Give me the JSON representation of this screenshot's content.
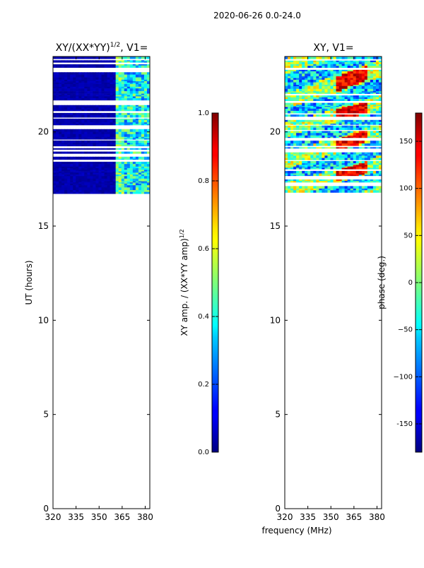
{
  "figure": {
    "suptitle": "2020-06-26 0.0-24.0",
    "shared_xlabel": "frequency (MHz)"
  },
  "chart_data": [
    {
      "type": "heatmap",
      "title_main": "XY/(XX*YY)",
      "title_exp": "1/2",
      "title_tail": ", V1=",
      "ylabel": "UT (hours)",
      "x_ticks": [
        "320",
        "335",
        "350",
        "365",
        "380"
      ],
      "x_tick_values": [
        320,
        335,
        350,
        365,
        380
      ],
      "xlim": [
        320,
        383
      ],
      "y_ticks": [
        "0",
        "5",
        "10",
        "15",
        "20"
      ],
      "y_tick_values": [
        0,
        5,
        10,
        15,
        20
      ],
      "ylim": [
        0,
        24
      ],
      "data_ut_range": [
        16.8,
        24
      ],
      "colorbar": {
        "label_main": "XY amp. / (XX*YY amp)",
        "label_exp": "1/2",
        "ticks": [
          "0.0",
          "0.2",
          "0.4",
          "0.6",
          "0.8",
          "1.0"
        ],
        "tick_values": [
          0.0,
          0.2,
          0.4,
          0.6,
          0.8,
          1.0
        ],
        "range": [
          0.0,
          1.0
        ],
        "colormap": "jet"
      }
    },
    {
      "type": "heatmap",
      "title_main": "XY, V1=",
      "x_ticks": [
        "320",
        "335",
        "350",
        "365",
        "380"
      ],
      "x_tick_values": [
        320,
        335,
        350,
        365,
        380
      ],
      "xlim": [
        320,
        383
      ],
      "y_ticks": [
        "0",
        "5",
        "10",
        "15",
        "20"
      ],
      "y_tick_values": [
        0,
        5,
        10,
        15,
        20
      ],
      "ylim": [
        0,
        24
      ],
      "data_ut_range": [
        16.8,
        24
      ],
      "colorbar": {
        "label_main": "phase (deg.)",
        "ticks": [
          "-150",
          "−100",
          "−50",
          "0",
          "50",
          "100",
          "150"
        ],
        "tick_values": [
          -150,
          -100,
          -50,
          0,
          50,
          100,
          150
        ],
        "range": [
          -180,
          180
        ],
        "colormap": "jet"
      }
    }
  ],
  "colors": {
    "jet_dark_blue": "#000080",
    "jet_blue": "#0000ff",
    "jet_cyan": "#00ffff",
    "jet_yellow": "#ffff00",
    "jet_red": "#ff0000",
    "jet_dark_red": "#800000"
  }
}
